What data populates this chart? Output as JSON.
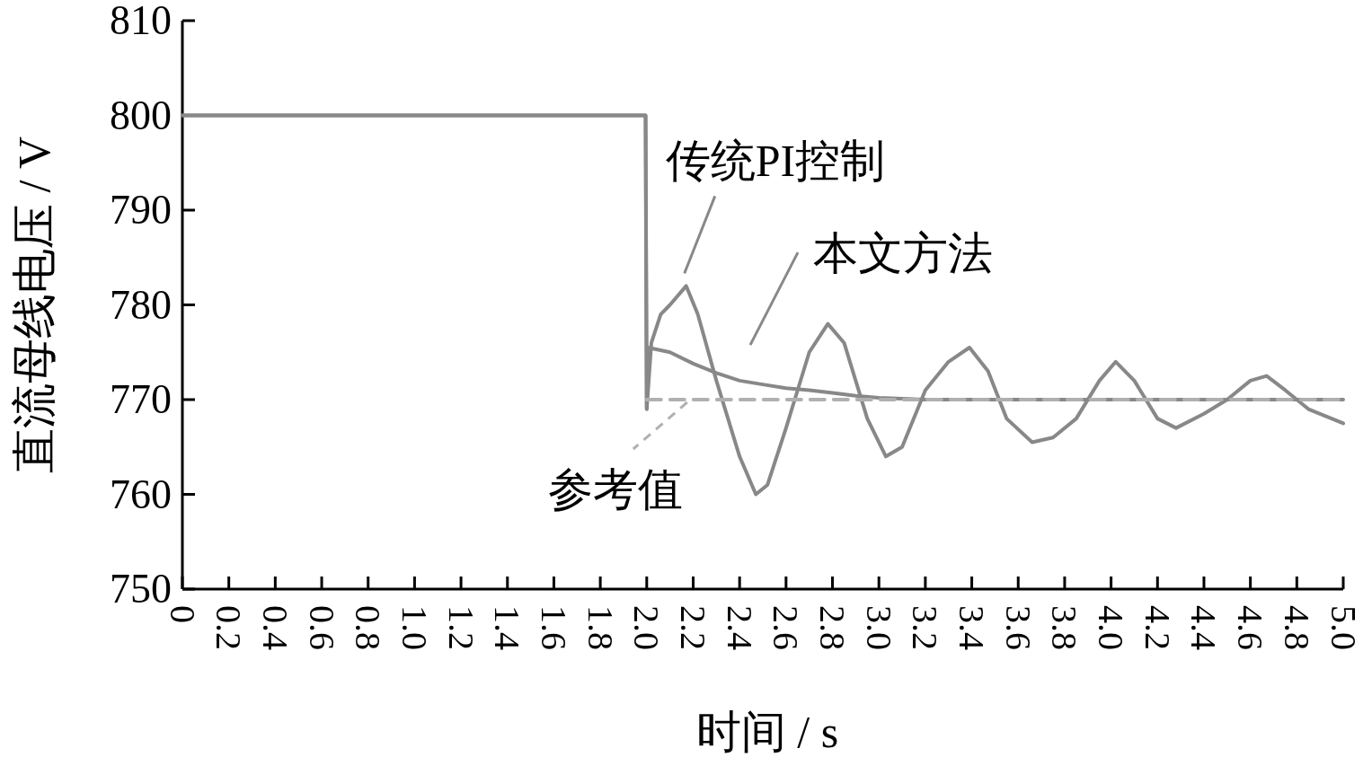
{
  "chart_data": {
    "type": "line",
    "xlabel": "时间 / s",
    "ylabel": "直流母线电压 / V",
    "xlim": [
      0,
      5.0
    ],
    "ylim": [
      750,
      810
    ],
    "xticks": [
      0,
      0.2,
      0.4,
      0.6,
      0.8,
      {
        "value": 1,
        "label": "1.0"
      },
      1.2,
      1.4,
      1.6,
      1.8,
      {
        "value": 2,
        "label": "2.0"
      },
      2.2,
      2.4,
      2.6,
      2.8,
      {
        "value": 3,
        "label": "3.0"
      },
      3.2,
      3.4,
      3.6,
      3.8,
      {
        "value": 4,
        "label": "4.0"
      },
      4.2,
      4.4,
      4.6,
      4.8,
      {
        "value": 5,
        "label": "5.0"
      }
    ],
    "yticks": [
      750,
      760,
      770,
      780,
      790,
      800,
      810
    ],
    "series": [
      {
        "name": "传统PI控制",
        "color": "#888888",
        "x": [
          0,
          1.995,
          2.0,
          2.02,
          2.06,
          2.1,
          2.17,
          2.22,
          2.3,
          2.4,
          2.47,
          2.52,
          2.6,
          2.7,
          2.78,
          2.85,
          2.95,
          3.03,
          3.1,
          3.2,
          3.3,
          3.39,
          3.47,
          3.55,
          3.66,
          3.75,
          3.85,
          3.95,
          4.02,
          4.1,
          4.2,
          4.28,
          4.4,
          4.5,
          4.6,
          4.67,
          4.75,
          4.85,
          4.95,
          5.0
        ],
        "values": [
          800,
          800,
          769,
          776,
          779,
          780,
          782,
          779,
          772,
          764,
          760,
          761,
          767,
          775,
          778,
          776,
          768,
          764,
          765,
          771,
          774,
          775.5,
          773,
          768,
          765.5,
          766,
          768,
          772,
          774,
          772,
          768,
          767,
          768.5,
          770,
          772,
          772.5,
          771,
          769,
          768,
          767.5
        ]
      },
      {
        "name": "本文方法",
        "color": "#888888",
        "x": [
          0,
          1.995,
          2.0,
          2.005,
          2.1,
          2.2,
          2.3,
          2.4,
          2.5,
          2.6,
          2.7,
          2.8,
          2.9,
          3.0,
          3.2,
          3.5,
          4.0,
          4.5,
          5.0
        ],
        "values": [
          800,
          800,
          769,
          775.5,
          775,
          773.8,
          772.8,
          772,
          771.6,
          771.2,
          771,
          770.7,
          770.4,
          770.2,
          770,
          770,
          770,
          770,
          770
        ]
      },
      {
        "name": "参考值",
        "color": "#b0b0b0",
        "line_style": "dashed",
        "x": [
          2.0,
          5.0
        ],
        "values": [
          770,
          770
        ]
      }
    ]
  }
}
